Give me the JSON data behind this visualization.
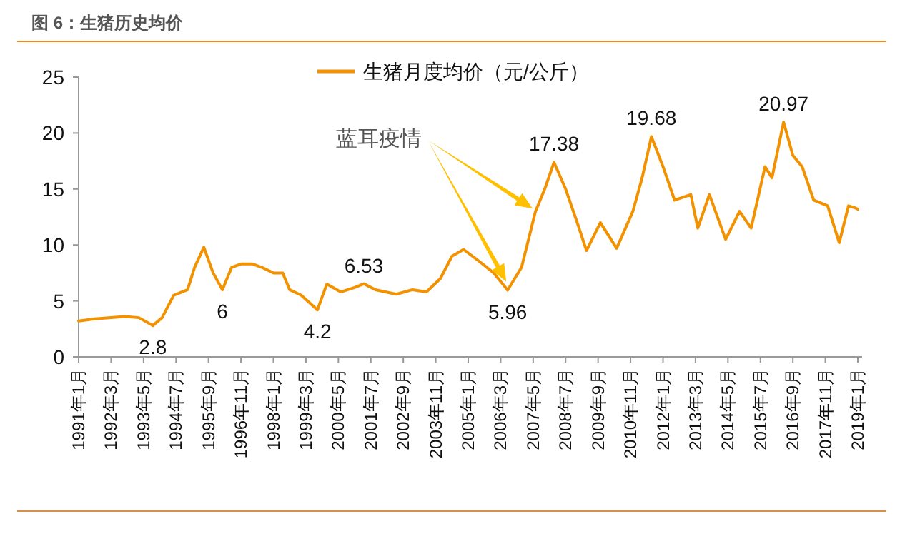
{
  "chart_data": {
    "type": "line",
    "title": "图 6：生猪历史均价",
    "legend": "top",
    "x": [
      "1991-01",
      "1991-08",
      "1992-03",
      "1992-09",
      "1993-03",
      "1993-09",
      "1994-01",
      "1994-06",
      "1994-12",
      "1995-03",
      "1995-07",
      "1995-11",
      "1996-03",
      "1996-07",
      "1996-11",
      "1997-04",
      "1997-08",
      "1998-01",
      "1998-05",
      "1998-08",
      "1999-01",
      "1999-08",
      "1999-12",
      "2000-06",
      "2000-12",
      "2001-04",
      "2001-09",
      "2002-06",
      "2003-01",
      "2003-07",
      "2004-01",
      "2004-06",
      "2004-11",
      "2005-06",
      "2005-12",
      "2006-06",
      "2006-12",
      "2007-06",
      "2007-10",
      "2008-02",
      "2008-07",
      "2008-12",
      "2009-04",
      "2009-10",
      "2010-05",
      "2010-12",
      "2011-04",
      "2011-08",
      "2012-01",
      "2012-06",
      "2013-01",
      "2013-04",
      "2013-09",
      "2014-04",
      "2014-10",
      "2015-03",
      "2015-09",
      "2015-12",
      "2016-05",
      "2016-09",
      "2017-01",
      "2017-06",
      "2017-12",
      "2018-05",
      "2018-09",
      "2018-12",
      "2019-01"
    ],
    "series": [
      {
        "name": "生猪月度均价（元/公斤）",
        "color": "#f39200",
        "values": [
          3.2,
          3.4,
          3.5,
          3.6,
          3.5,
          2.8,
          3.5,
          5.5,
          6.0,
          8.0,
          9.8,
          7.5,
          6.0,
          8.0,
          8.3,
          8.3,
          8.0,
          7.5,
          7.5,
          6.0,
          5.5,
          4.2,
          6.5,
          5.8,
          6.2,
          6.53,
          6.0,
          5.6,
          6.0,
          5.8,
          7.0,
          9.0,
          9.6,
          8.5,
          7.5,
          5.96,
          8.0,
          13.0,
          15.0,
          17.38,
          15.0,
          12.0,
          9.5,
          12.0,
          9.7,
          13.0,
          16.0,
          19.68,
          17.0,
          14.0,
          14.5,
          11.5,
          14.5,
          10.5,
          13.0,
          11.5,
          17.0,
          16.0,
          20.97,
          18.0,
          17.0,
          14.0,
          13.5,
          10.2,
          13.5,
          13.3,
          13.2
        ]
      }
    ],
    "ylim": [
      0,
      25
    ],
    "yticks": [
      0,
      5,
      10,
      15,
      20,
      25
    ],
    "xlim": [
      "1991-01",
      "2019-01"
    ],
    "xticks": [
      {
        "value": "1991-01",
        "label": "1991年1月"
      },
      {
        "value": "1992-03",
        "label": "1992年3月"
      },
      {
        "value": "1993-05",
        "label": "1993年5月"
      },
      {
        "value": "1994-07",
        "label": "1994年7月"
      },
      {
        "value": "1995-09",
        "label": "1995年9月"
      },
      {
        "value": "1996-11",
        "label": "1996年11月"
      },
      {
        "value": "1998-01",
        "label": "1998年1月"
      },
      {
        "value": "1999-03",
        "label": "1999年3月"
      },
      {
        "value": "2000-05",
        "label": "2000年5月"
      },
      {
        "value": "2001-07",
        "label": "2001年7月"
      },
      {
        "value": "2002-09",
        "label": "2002年9月"
      },
      {
        "value": "2003-11",
        "label": "2003年11月"
      },
      {
        "value": "2005-01",
        "label": "2005年1月"
      },
      {
        "value": "2006-03",
        "label": "2006年3月"
      },
      {
        "value": "2007-05",
        "label": "2007年5月"
      },
      {
        "value": "2008-07",
        "label": "2008年7月"
      },
      {
        "value": "2009-09",
        "label": "2009年9月"
      },
      {
        "value": "2010-11",
        "label": "2010年11月"
      },
      {
        "value": "2012-01",
        "label": "2012年1月"
      },
      {
        "value": "2013-03",
        "label": "2013年3月"
      },
      {
        "value": "2014-05",
        "label": "2014年5月"
      },
      {
        "value": "2015-07",
        "label": "2015年7月"
      },
      {
        "value": "2016-09",
        "label": "2016年9月"
      },
      {
        "value": "2017-11",
        "label": "2017年11月"
      },
      {
        "value": "2019-01",
        "label": "2019年1月"
      }
    ],
    "grid": false,
    "marker": "none",
    "line_style": "solid",
    "annotations": [
      {
        "text": "2.8",
        "x": "1993-09",
        "y": 2.8
      },
      {
        "text": "6",
        "x": "1996-03",
        "y": 6.0
      },
      {
        "text": "4.2",
        "x": "1999-08",
        "y": 4.2
      },
      {
        "text": "6.53",
        "x": "2001-04",
        "y": 6.53
      },
      {
        "text": "5.96",
        "x": "2006-06",
        "y": 5.96
      },
      {
        "text": "17.38",
        "x": "2008-02",
        "y": 17.38
      },
      {
        "text": "19.68",
        "x": "2011-08",
        "y": 19.68
      },
      {
        "text": "20.97",
        "x": "2016-05",
        "y": 20.97
      },
      "蓝耳疫情"
    ]
  }
}
